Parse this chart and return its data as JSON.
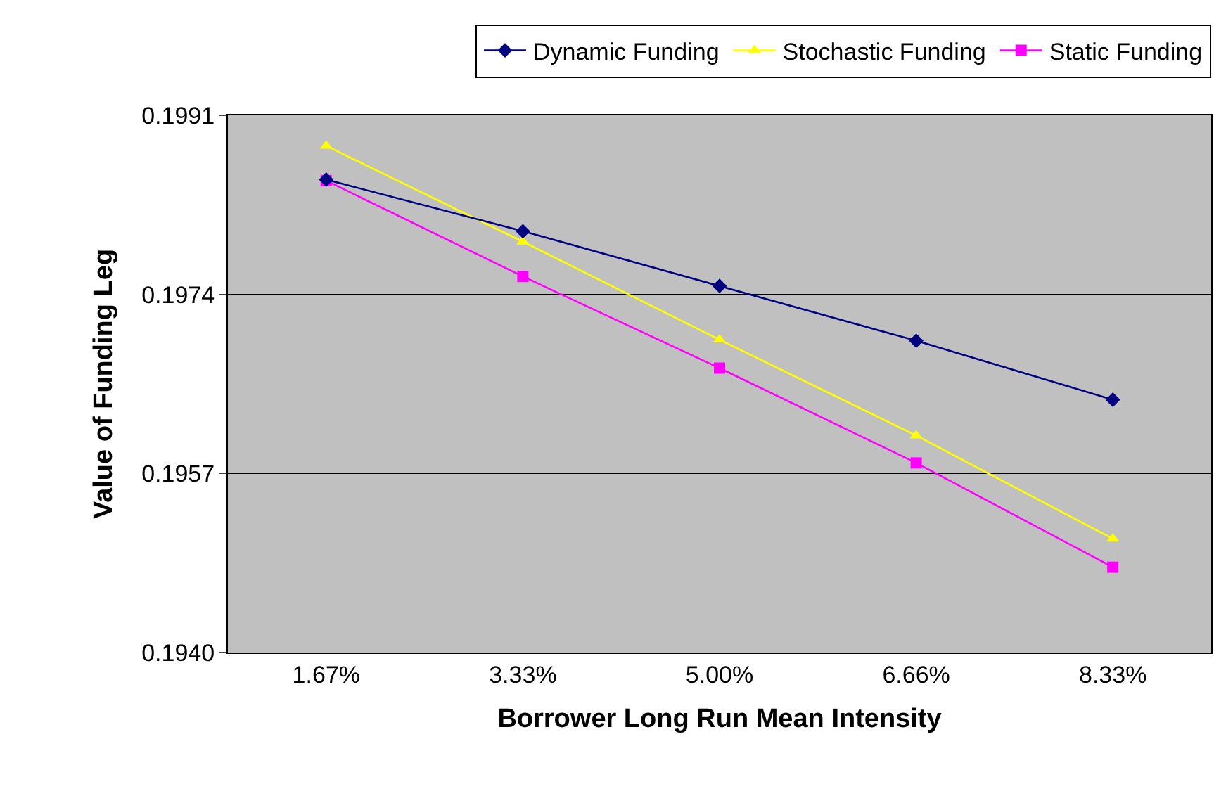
{
  "chart_data": {
    "type": "line",
    "xlabel": "Borrower Long Run Mean Intensity",
    "ylabel": "Value of Funding Leg",
    "categories": [
      "1.67%",
      "3.33%",
      "5.00%",
      "6.66%",
      "8.33%"
    ],
    "series": [
      {
        "name": "Dynamic Funding",
        "color": "#000080",
        "marker": "diamond",
        "values": [
          0.19849,
          0.198,
          0.19748,
          0.19696,
          0.1964
        ]
      },
      {
        "name": "Stochastic Funding",
        "color": "#ffff00",
        "marker": "triangle",
        "values": [
          0.19881,
          0.1979,
          0.19697,
          0.19606,
          0.19508
        ]
      },
      {
        "name": "Static Funding",
        "color": "#ff00ff",
        "marker": "square",
        "values": [
          0.19848,
          0.19757,
          0.1967,
          0.1958,
          0.19481
        ]
      }
    ],
    "ylim": [
      0.194,
      0.1991
    ],
    "yticks": [
      {
        "value": 0.194,
        "label": "0.1940"
      },
      0.1957,
      0.1974,
      0.1991
    ],
    "grid": "y",
    "legend": "top right"
  }
}
